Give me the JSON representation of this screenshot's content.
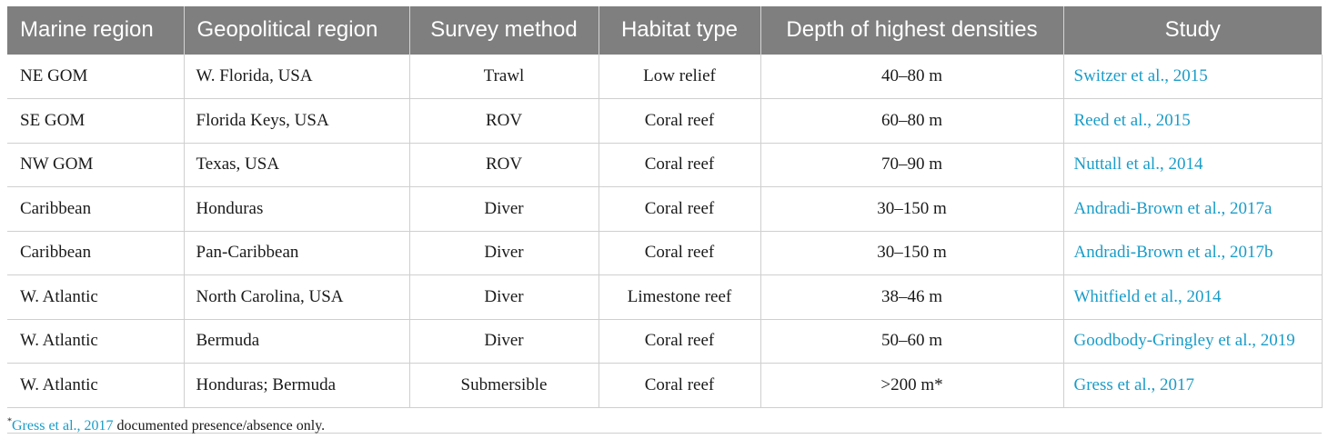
{
  "table": {
    "headers": [
      "Marine region",
      "Geopolitical region",
      "Survey method",
      "Habitat type",
      "Depth of highest densities",
      "Study"
    ],
    "rows": [
      [
        "NE GOM",
        "W. Florida, USA",
        "Trawl",
        "Low relief",
        "40–80 m",
        "Switzer et al., 2015"
      ],
      [
        "SE GOM",
        "Florida Keys, USA",
        "ROV",
        "Coral reef",
        "60–80 m",
        "Reed et al., 2015"
      ],
      [
        "NW GOM",
        "Texas, USA",
        "ROV",
        "Coral reef",
        "70–90 m",
        "Nuttall et al., 2014"
      ],
      [
        "Caribbean",
        "Honduras",
        "Diver",
        "Coral reef",
        "30–150 m",
        "Andradi-Brown et al., 2017a"
      ],
      [
        "Caribbean",
        "Pan-Caribbean",
        "Diver",
        "Coral reef",
        "30–150 m",
        "Andradi-Brown et al., 2017b"
      ],
      [
        "W. Atlantic",
        "North Carolina, USA",
        "Diver",
        "Limestone reef",
        "38–46 m",
        "Whitfield et al., 2014"
      ],
      [
        "W. Atlantic",
        "Bermuda",
        "Diver",
        "Coral reef",
        "50–60 m",
        "Goodbody-Gringley et al., 2019"
      ],
      [
        "W. Atlantic",
        "Honduras; Bermuda",
        "Submersible",
        "Coral reef",
        ">200 m*",
        "Gress et al., 2017"
      ]
    ]
  },
  "footnote": {
    "marker": "*",
    "citation": "Gress et al., 2017",
    "text": " documented presence/absence only."
  },
  "colors": {
    "header_bg": "#7f7f7f",
    "link": "#1a9cc8"
  }
}
